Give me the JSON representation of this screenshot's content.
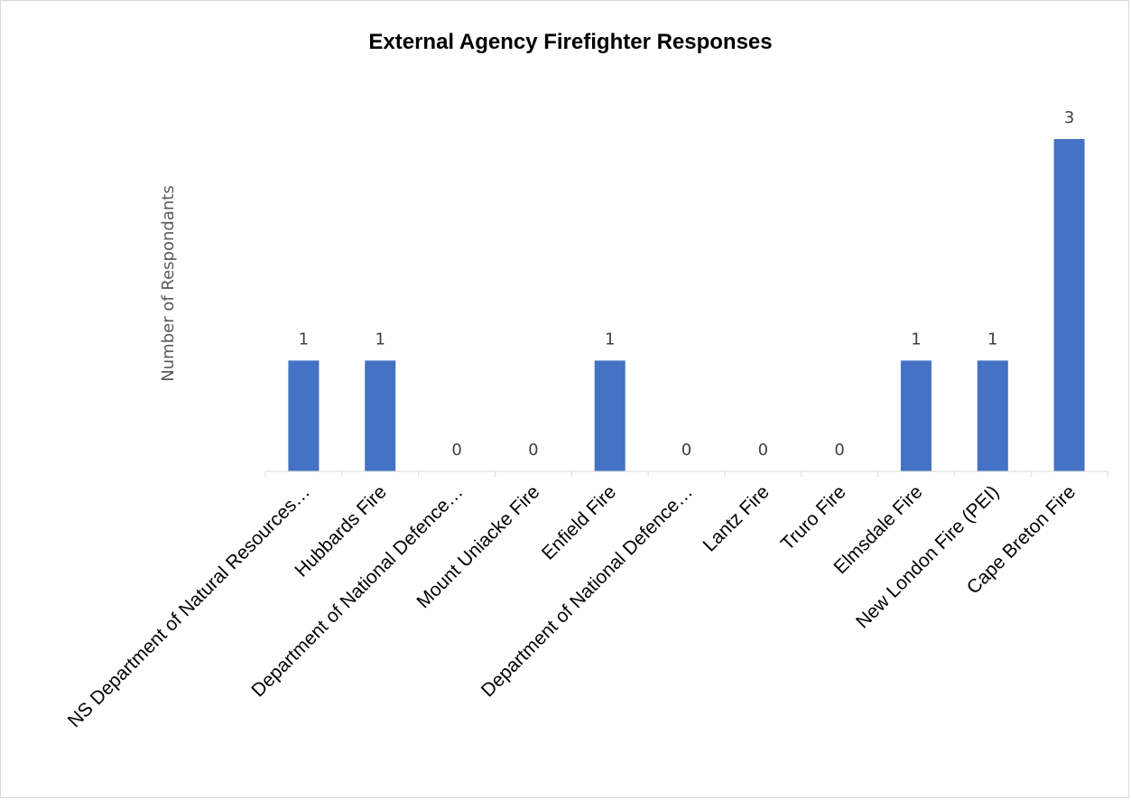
{
  "chart_data": {
    "type": "bar",
    "title": "External Agency Firefighter Responses",
    "xlabel": "",
    "ylabel": "Number of Respondants",
    "categories": [
      "NS Department of Natural Resources…",
      "Hubbards Fire",
      "Department of National Defence…",
      "Mount Uniacke Fire",
      "Enfield Fire",
      "Department of National Defence…",
      "Lantz Fire",
      "Truro Fire",
      "Elmsdale Fire",
      "New London Fire (PEI)",
      "Cape Breton Fire"
    ],
    "values": [
      1,
      1,
      0,
      0,
      1,
      0,
      0,
      0,
      1,
      1,
      3
    ],
    "ylim": [
      0,
      3
    ],
    "grid": false,
    "legend": "none",
    "bar_color": "#4472c4",
    "axis_color": "#d9d9d9"
  }
}
